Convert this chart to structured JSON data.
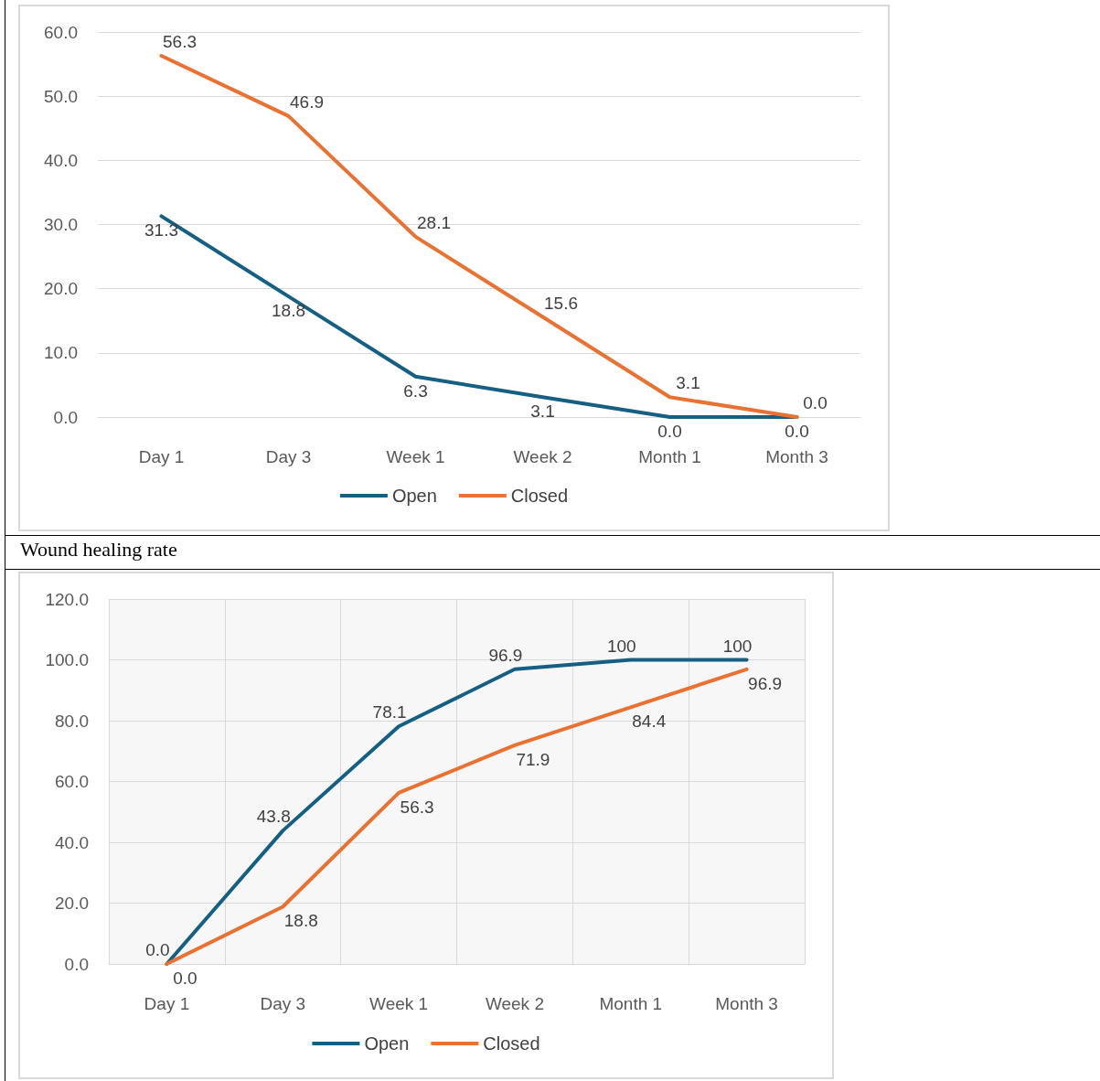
{
  "chart_data": [
    {
      "type": "line",
      "categories": [
        "Day 1",
        "Day 3",
        "Week 1",
        "Week 2",
        "Month 1",
        "Month 3"
      ],
      "series": [
        {
          "name": "Open",
          "color": "#156082",
          "values": [
            31.3,
            18.8,
            6.3,
            3.1,
            0.0,
            0.0
          ],
          "value_labels": [
            "31.3",
            "18.8",
            "6.3",
            "3.1",
            "0.0",
            "0.0"
          ]
        },
        {
          "name": "Closed",
          "color": "#e97132",
          "values": [
            56.3,
            46.9,
            28.1,
            15.6,
            3.1,
            0.0
          ],
          "value_labels": [
            "56.3",
            "46.9",
            "28.1",
            "15.6",
            "3.1",
            "0.0"
          ]
        }
      ],
      "ylim": [
        0,
        60
      ],
      "yticks": [
        {
          "value": 0,
          "label": "0.0"
        },
        {
          "value": 10,
          "label": "10.0"
        },
        {
          "value": 20,
          "label": "20.0"
        },
        {
          "value": 30,
          "label": "30.0"
        },
        {
          "value": 40,
          "label": "40.0"
        },
        {
          "value": 50,
          "label": "50.0"
        },
        {
          "value": 60,
          "label": "60.0"
        }
      ],
      "grid": "y",
      "legend": "bottom",
      "marker": "none",
      "line_style": "solid"
    },
    {
      "type": "line",
      "title": "Wound healing rate",
      "categories": [
        "Day 1",
        "Day 3",
        "Week 1",
        "Week 2",
        "Month 1",
        "Month 3"
      ],
      "series": [
        {
          "name": "Open",
          "color": "#156082",
          "values": [
            0.0,
            43.8,
            78.1,
            96.9,
            100,
            100
          ],
          "value_labels": [
            "0.0",
            "43.8",
            "78.1",
            "96.9",
            "100",
            "100"
          ]
        },
        {
          "name": "Closed",
          "color": "#e97132",
          "values": [
            0.0,
            18.8,
            56.3,
            71.9,
            84.4,
            96.9
          ],
          "value_labels": [
            "0.0",
            "18.8",
            "56.3",
            "71.9",
            "84.4",
            "96.9"
          ]
        }
      ],
      "ylim": [
        0,
        120
      ],
      "yticks": [
        {
          "value": 0,
          "label": "0.0"
        },
        {
          "value": 20,
          "label": "20.0"
        },
        {
          "value": 40,
          "label": "40.0"
        },
        {
          "value": 60,
          "label": "60.0"
        },
        {
          "value": 80,
          "label": "80.0"
        },
        {
          "value": 100,
          "label": "100.0"
        },
        {
          "value": 120,
          "label": "120.0"
        }
      ],
      "grid": true,
      "legend": "bottom",
      "marker": "none",
      "line_style": "solid"
    }
  ]
}
